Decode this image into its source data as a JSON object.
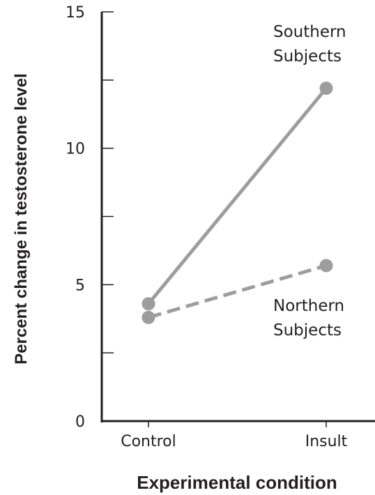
{
  "chart_data": {
    "type": "line",
    "categories": [
      "Control",
      "Insult"
    ],
    "xlabel": "Experimental condition",
    "ylabel": "Percent change in testosterone level",
    "ylim": [
      0,
      15
    ],
    "yticks_major": [
      0,
      5,
      10,
      15
    ],
    "yticks_minor": [
      2.5,
      7.5,
      12.5
    ],
    "grid": false,
    "series": [
      {
        "name": "Southern Subjects",
        "name_lines": [
          "Southern",
          "Subjects"
        ],
        "values": [
          4.3,
          12.2
        ],
        "line_style": "solid"
      },
      {
        "name": "Northern Subjects",
        "name_lines": [
          "Northern",
          "Subjects"
        ],
        "values": [
          3.8,
          5.7
        ],
        "line_style": "dashed"
      }
    ],
    "colors": {
      "axis": "#231f20",
      "series": "#9d9d9d",
      "text": "#231f20"
    }
  }
}
